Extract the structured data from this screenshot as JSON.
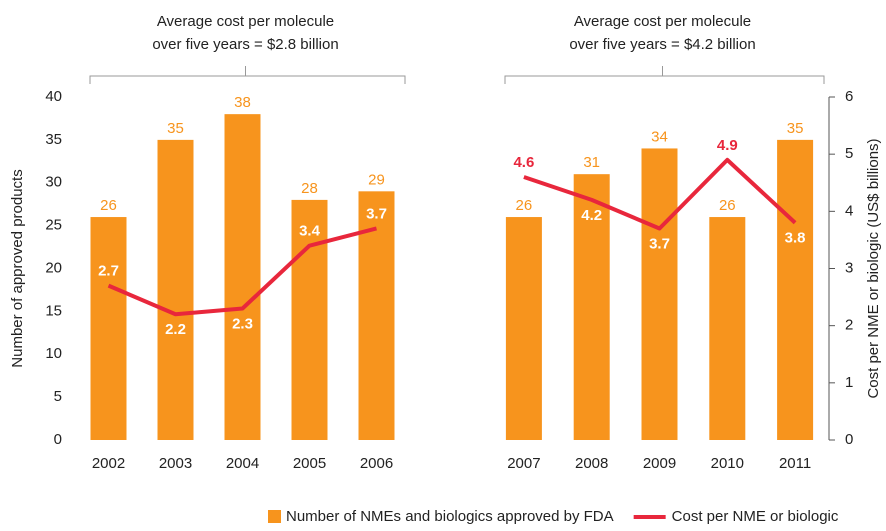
{
  "chart_data": [
    {
      "type": "bar_line",
      "annotation": [
        "Average cost per molecule",
        "over five years = $2.8 billion"
      ],
      "y_label": "Number of approved products",
      "categories": [
        "2002",
        "2003",
        "2004",
        "2005",
        "2006"
      ],
      "ylim": [
        0,
        40
      ],
      "yticks": [
        0,
        5,
        10,
        15,
        20,
        25,
        30,
        35,
        40
      ],
      "y2lim": [
        0,
        6
      ],
      "series": [
        {
          "name": "Number of NMEs and biologics approved by FDA",
          "color": "#f7941d",
          "kind": "bar",
          "values": [
            26,
            35,
            38,
            28,
            29
          ]
        },
        {
          "name": "Cost per NME or biologic",
          "color": "#e8273c",
          "kind": "line",
          "axis": "y2",
          "values": [
            2.7,
            2.2,
            2.3,
            3.4,
            3.7
          ],
          "label_position": [
            "above",
            "below",
            "below",
            "above",
            "above"
          ]
        }
      ]
    },
    {
      "type": "bar_line",
      "annotation": [
        "Average cost per molecule",
        "over five years = $4.2 billion"
      ],
      "y2_label": "Cost per NME or biologic (US$ billions)",
      "categories": [
        "2007",
        "2008",
        "2009",
        "2010",
        "2011"
      ],
      "ylim": [
        0,
        40
      ],
      "y2lim": [
        0,
        6
      ],
      "y2ticks": [
        0,
        1,
        2,
        3,
        4,
        5,
        6
      ],
      "series": [
        {
          "color": "#f7941d",
          "kind": "bar",
          "values": [
            26,
            31,
            34,
            26,
            35
          ]
        },
        {
          "color": "#e8273c",
          "kind": "line",
          "axis": "y2",
          "values": [
            4.6,
            4.2,
            3.7,
            4.9,
            3.8
          ],
          "label_position": [
            "above",
            "below",
            "below",
            "above",
            "below"
          ]
        }
      ]
    }
  ]
}
